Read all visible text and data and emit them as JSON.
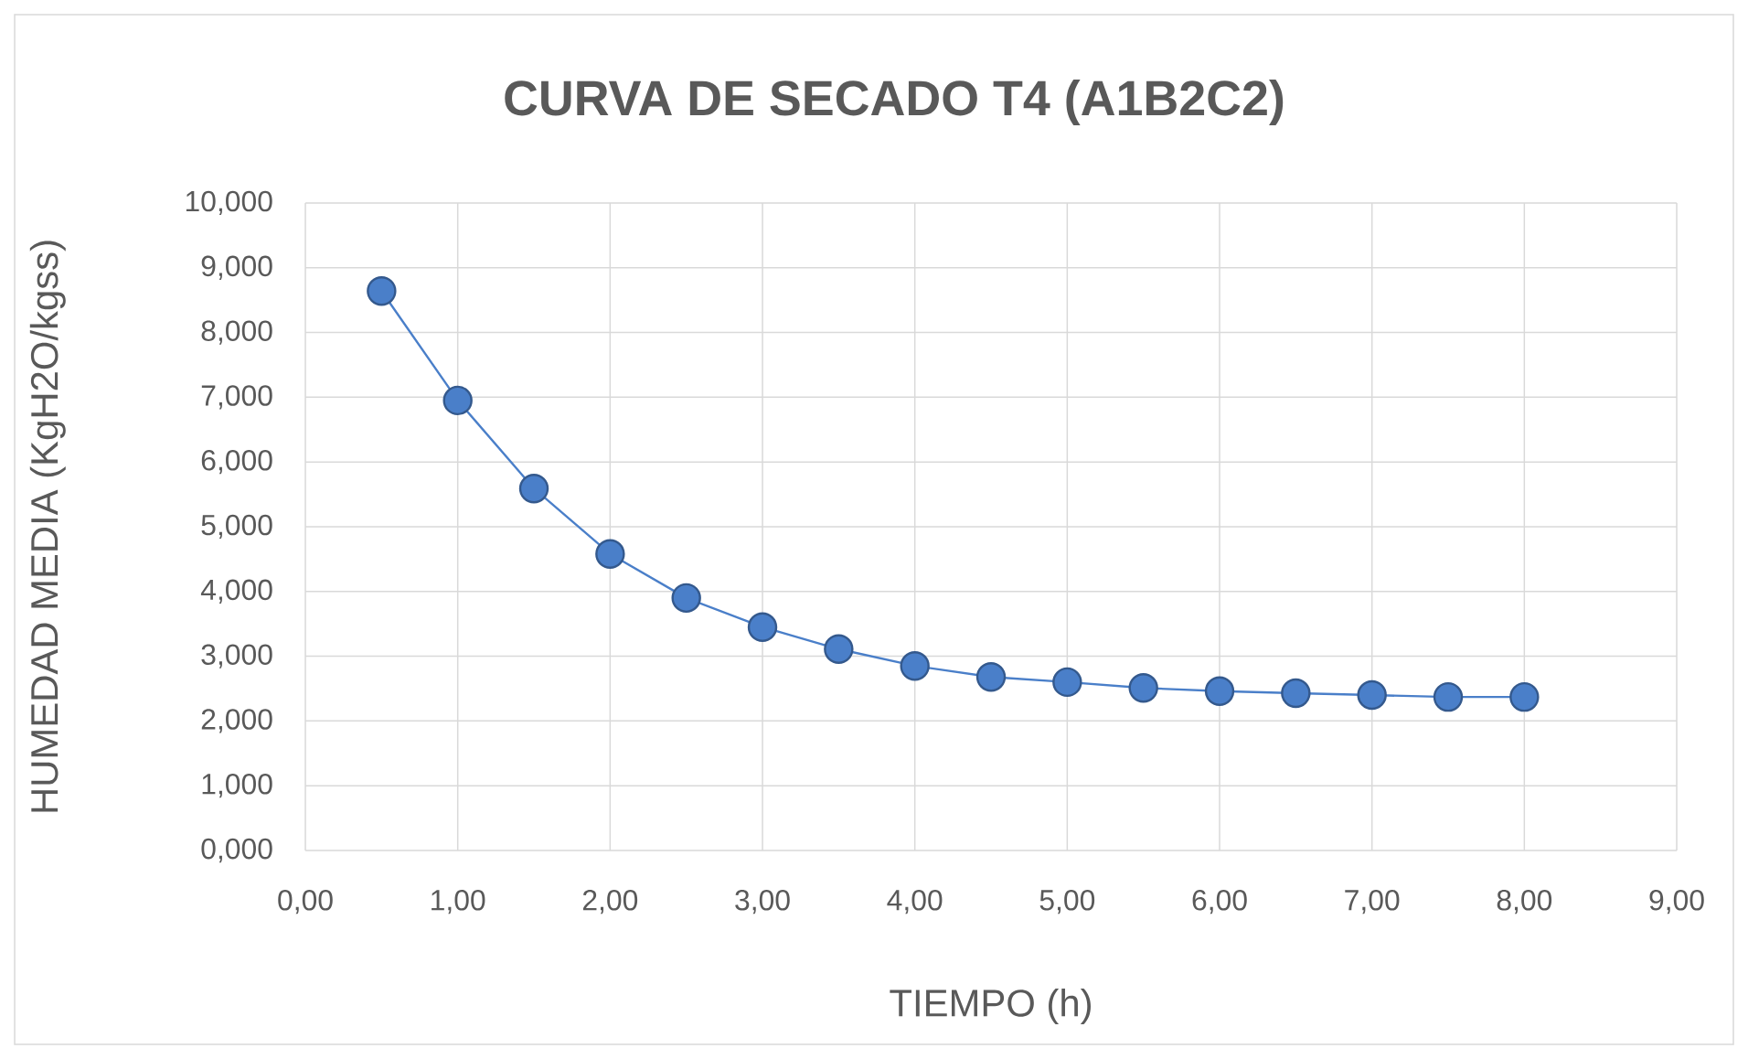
{
  "chart_data": {
    "type": "line",
    "title": "CURVA DE  SECADO T4 (A1B2C2)",
    "xlabel": "TIEMPO  (h)",
    "ylabel": "HUMEDAD  MEDIA  (KgH2O/kgss)",
    "x": [
      0.5,
      1.0,
      1.5,
      2.0,
      2.5,
      3.0,
      3.5,
      4.0,
      4.5,
      5.0,
      5.5,
      6.0,
      6.5,
      7.0,
      7.5,
      8.0
    ],
    "series": [
      {
        "color": "#4a7fc9",
        "values": [
          8.64,
          6.95,
          5.59,
          4.58,
          3.9,
          3.45,
          3.11,
          2.85,
          2.68,
          2.6,
          2.51,
          2.46,
          2.43,
          2.4,
          2.37,
          2.37
        ]
      }
    ],
    "xlim": [
      0,
      9
    ],
    "ylim": [
      0,
      10
    ],
    "xticks": [
      {
        "value": 0,
        "label": "0,00"
      },
      {
        "value": 1,
        "label": "1,00"
      },
      {
        "value": 2,
        "label": "2,00"
      },
      {
        "value": 3,
        "label": "3,00"
      },
      {
        "value": 4,
        "label": "4,00"
      },
      {
        "value": 5,
        "label": "5,00"
      },
      {
        "value": 6,
        "label": "6,00"
      },
      {
        "value": 7,
        "label": "7,00"
      },
      {
        "value": 8,
        "label": "8,00"
      },
      {
        "value": 9,
        "label": "9,00"
      }
    ],
    "yticks": [
      {
        "value": 0,
        "label": "0,000"
      },
      {
        "value": 1,
        "label": "1,000"
      },
      {
        "value": 2,
        "label": "2,000"
      },
      {
        "value": 3,
        "label": "3,000"
      },
      {
        "value": 4,
        "label": "4,000"
      },
      {
        "value": 5,
        "label": "5,000"
      },
      {
        "value": 6,
        "label": "6,000"
      },
      {
        "value": 7,
        "label": "7,000"
      },
      {
        "value": 8,
        "label": "8,000"
      },
      {
        "value": 9,
        "label": "9,000"
      },
      {
        "value": 10,
        "label": "10,000"
      }
    ],
    "grid": true,
    "marker": "circle",
    "line_style": "solid"
  }
}
